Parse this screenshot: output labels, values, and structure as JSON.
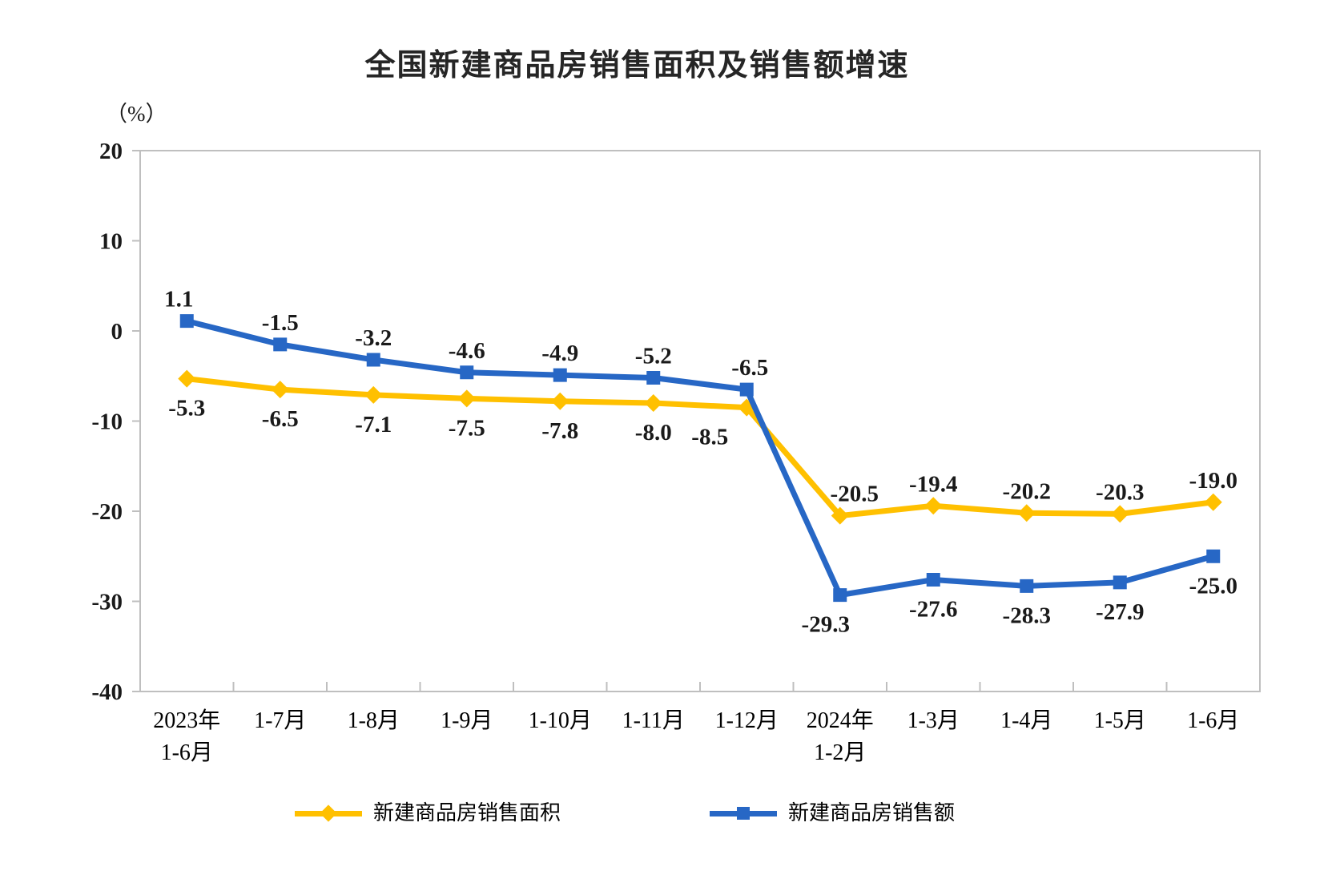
{
  "page": {
    "title": "全国新建商品房销售面积及销售额增速",
    "unit_label": "（%）"
  },
  "colors": {
    "area_series_yellow": "#FFC000",
    "amount_series_blue": "#2767C5",
    "axis_gray": "#BFBFBF",
    "label_text": "#1A1A1A"
  },
  "chart_data": {
    "type": "line",
    "title": "全国新建商品房销售面积及销售额增速",
    "ylabel": "（%）",
    "xlabel": "",
    "ylim": [
      -40,
      20
    ],
    "y_ticks": [
      20,
      10,
      0,
      -10,
      -20,
      -30,
      -40
    ],
    "grid": false,
    "legend_position": "bottom",
    "categories": [
      {
        "line1": "2023年",
        "line2": "1-6月"
      },
      {
        "line1": "1-7月",
        "line2": ""
      },
      {
        "line1": "1-8月",
        "line2": ""
      },
      {
        "line1": "1-9月",
        "line2": ""
      },
      {
        "line1": "1-10月",
        "line2": ""
      },
      {
        "line1": "1-11月",
        "line2": ""
      },
      {
        "line1": "1-12月",
        "line2": ""
      },
      {
        "line1": "2024年",
        "line2": "1-2月"
      },
      {
        "line1": "1-3月",
        "line2": ""
      },
      {
        "line1": "1-4月",
        "line2": ""
      },
      {
        "line1": "1-5月",
        "line2": ""
      },
      {
        "line1": "1-6月",
        "line2": ""
      }
    ],
    "series": [
      {
        "name": "新建商品房销售面积",
        "color": "#FFC000",
        "marker": "diamond",
        "values": [
          -5.3,
          -6.5,
          -7.1,
          -7.5,
          -7.8,
          -8.0,
          -8.5,
          -20.5,
          -19.4,
          -20.2,
          -20.3,
          -19.0
        ],
        "label_sides": [
          "below",
          "below",
          "below",
          "below",
          "below",
          "below",
          "below",
          "above",
          "above",
          "above",
          "above",
          "above"
        ],
        "label_dx": [
          0,
          0,
          0,
          0,
          0,
          0,
          -46,
          18,
          0,
          0,
          0,
          0
        ]
      },
      {
        "name": "新建商品房销售额",
        "color": "#2767C5",
        "marker": "square",
        "values": [
          1.1,
          -1.5,
          -3.2,
          -4.6,
          -4.9,
          -5.2,
          -6.5,
          -29.3,
          -27.6,
          -28.3,
          -27.9,
          -25.0
        ],
        "label_sides": [
          "above",
          "above",
          "above",
          "above",
          "above",
          "above",
          "above",
          "below",
          "below",
          "below",
          "below",
          "below"
        ],
        "label_dx": [
          -10,
          0,
          0,
          0,
          0,
          0,
          4,
          -18,
          0,
          0,
          0,
          0
        ]
      }
    ],
    "legend": [
      {
        "label": "新建商品房销售面积",
        "marker": "diamond",
        "color": "#FFC000"
      },
      {
        "label": "新建商品房销售额",
        "marker": "square",
        "color": "#2767C5"
      }
    ]
  }
}
